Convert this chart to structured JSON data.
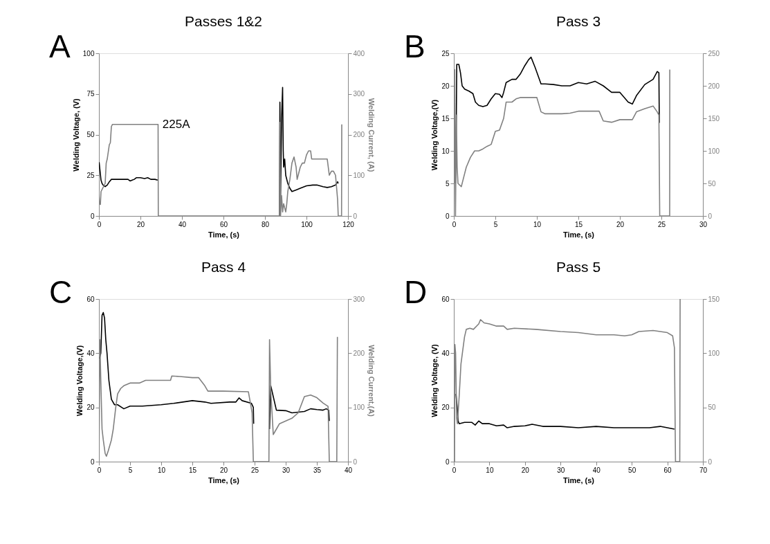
{
  "chart_data": [
    {
      "type": "line",
      "title": "Passes 1&2",
      "xlabel": "Time, (s)",
      "ylabel": "Welding Voltage, (V)",
      "y2label": "Welding Current, (A)",
      "xlim": [
        0,
        120
      ],
      "xticks": [
        0,
        20,
        40,
        60,
        80,
        100,
        120
      ],
      "ylim": [
        0,
        100
      ],
      "yticks": [
        0,
        25,
        50,
        75,
        100
      ],
      "y2lim": [
        0,
        400
      ],
      "y2ticks": [
        0,
        100,
        200,
        300,
        400
      ],
      "annotations": [
        "A",
        "225A"
      ],
      "series": [
        {
          "color": "#000000",
          "x": [
            0.1,
            0.5,
            1,
            1.5,
            2,
            3,
            4,
            5,
            6,
            8,
            10,
            12,
            14,
            15,
            16,
            17,
            18,
            20,
            22,
            23.5,
            25,
            27,
            28.3,
            50,
            87,
            87.2,
            87.5,
            88,
            88.5,
            88.8,
            89,
            89.5,
            90,
            91,
            92,
            93,
            95,
            97,
            100,
            103,
            105,
            108,
            110,
            112,
            114,
            115,
            115.3
          ],
          "values": [
            33,
            28,
            22,
            20,
            19,
            18,
            19,
            21,
            22.5,
            22.5,
            22.5,
            22.5,
            22.5,
            21.5,
            22,
            22.5,
            23.5,
            23.5,
            23,
            23.5,
            22.5,
            22.5,
            22,
            null,
            0,
            70,
            10,
            60,
            79,
            40,
            30,
            35,
            25,
            20,
            17,
            15,
            16,
            17,
            18.5,
            19,
            19,
            18,
            17.5,
            18,
            19,
            21,
            20
          ]
        },
        {
          "color": "#808080",
          "axis": "y2",
          "x": [
            0,
            0.3,
            0.7,
            1,
            2,
            3,
            3.5,
            4,
            5,
            5.5,
            6,
            6.5,
            28.5,
            28.6,
            87,
            87.2,
            87.5,
            88,
            88.5,
            89,
            90,
            90.5,
            91,
            92,
            93,
            94,
            95,
            95.5,
            96,
            97,
            98,
            99,
            100,
            101,
            102,
            102.5,
            110,
            111,
            112,
            113,
            114,
            115,
            115.3,
            116.5,
            116.9,
            117
          ],
          "values": [
            55,
            30,
            28,
            60,
            70,
            80,
            130,
            140,
            175,
            180,
            220,
            225,
            225,
            0,
            0,
            230,
            0,
            50,
            10,
            30,
            10,
            30,
            60,
            90,
            130,
            145,
            120,
            90,
            100,
            120,
            130,
            130,
            150,
            160,
            160,
            140,
            140,
            100,
            110,
            110,
            100,
            40,
            0,
            0,
            0,
            225
          ]
        }
      ]
    },
    {
      "type": "line",
      "title": "Pass 3",
      "xlabel": "Time, (s)",
      "ylabel": "Welding Voltage,(V)",
      "xlim": [
        0,
        30
      ],
      "xticks": [
        0,
        5,
        10,
        15,
        20,
        25,
        30
      ],
      "ylim": [
        0,
        25
      ],
      "yticks": [
        0,
        5,
        10,
        15,
        20,
        25
      ],
      "y2lim": [
        0,
        250
      ],
      "y2ticks": [
        0,
        50,
        100,
        150,
        200,
        250
      ],
      "annotations": [
        "B"
      ],
      "series": [
        {
          "color": "#000000",
          "x": [
            0.2,
            0.3,
            0.35,
            0.6,
            0.8,
            1,
            1.3,
            1.8,
            2.3,
            2.6,
            3,
            3.5,
            4,
            4.5,
            5,
            5.5,
            5.8,
            6,
            6.3,
            7,
            7.5,
            8,
            8.5,
            9,
            9.3,
            9.8,
            10.3,
            10.5,
            11,
            12,
            13,
            14,
            15,
            16,
            17,
            18,
            19,
            20,
            21,
            21.5,
            22,
            23,
            24,
            24.5,
            24.7,
            24.75
          ],
          "values": [
            5,
            15,
            23.3,
            23.3,
            22,
            20,
            19.5,
            19.2,
            18.8,
            17.5,
            17,
            16.8,
            17,
            18,
            18.8,
            18.7,
            18.2,
            19,
            20.5,
            21,
            21,
            21.8,
            23,
            24,
            24.4,
            22.8,
            21,
            20.3,
            20.3,
            20.2,
            20,
            20,
            20.5,
            20.3,
            20.7,
            20,
            19,
            19,
            17.5,
            17.2,
            18.5,
            20.2,
            21,
            22.2,
            22,
            14.3
          ]
        },
        {
          "color": "#808080",
          "axis": "y2",
          "x": [
            0,
            0.1,
            0.2,
            0.3,
            0.4,
            0.5,
            0.9,
            1.2,
            1.5,
            2,
            2.5,
            3,
            3.5,
            4,
            4.5,
            5,
            5.5,
            6,
            6.3,
            7,
            7.5,
            8,
            10,
            10.5,
            11,
            13,
            14,
            15,
            17.5,
            18,
            19,
            20,
            21.5,
            22,
            23,
            24,
            24.5,
            24.7,
            24.8,
            26,
            26.01
          ],
          "values": [
            0,
            225,
            0,
            155,
            75,
            50,
            45,
            60,
            75,
            90,
            100,
            100,
            103,
            107,
            110,
            130,
            132,
            150,
            175,
            175,
            180,
            182,
            182,
            160,
            157,
            157,
            158,
            161,
            161,
            146,
            144,
            148,
            148,
            160,
            165,
            169,
            160,
            155,
            0,
            0,
            225
          ]
        }
      ]
    },
    {
      "type": "line",
      "title": "Pass 4",
      "xlabel": "Time, (s)",
      "ylabel": "Welding Voltage,(V)",
      "y2label": "Welding Current,(A)",
      "xlim": [
        0,
        40
      ],
      "xticks": [
        0,
        5,
        10,
        15,
        20,
        25,
        30,
        35,
        40
      ],
      "ylim": [
        0,
        60
      ],
      "yticks": [
        0,
        20,
        40,
        60
      ],
      "y2lim": [
        0,
        300
      ],
      "y2ticks": [
        0,
        100,
        200,
        300
      ],
      "annotations": [
        "C"
      ],
      "series": [
        {
          "color": "#000000",
          "x": [
            0.1,
            0.3,
            0.5,
            0.7,
            0.9,
            1.1,
            1.3,
            1.6,
            2,
            2.5,
            3,
            4,
            5,
            7,
            10,
            12,
            15,
            17,
            18,
            21,
            22,
            22.5,
            23,
            24.5,
            24.8,
            24.85,
            26,
            27.4,
            27.6,
            28,
            28.5,
            30,
            31,
            33,
            34,
            35,
            36,
            36.5,
            36.9,
            37
          ],
          "values": [
            38,
            40,
            54,
            55,
            53,
            45,
            40,
            30,
            23,
            21,
            21,
            19.5,
            20.5,
            20.5,
            21,
            21.5,
            22.5,
            22,
            21.5,
            22,
            22,
            23.5,
            22.5,
            21.5,
            20,
            14,
            null,
            12,
            28,
            24,
            19,
            18.8,
            18,
            18.5,
            19.5,
            19.2,
            19,
            19.5,
            19,
            15
          ]
        },
        {
          "color": "#808080",
          "axis": "y2",
          "x": [
            0,
            0.15,
            0.3,
            0.5,
            0.7,
            1,
            1.2,
            1.5,
            2,
            2.3,
            2.7,
            3,
            3.5,
            4,
            5,
            6.5,
            7.5,
            11.5,
            11.7,
            13,
            15,
            16,
            17,
            17.5,
            20,
            24,
            24.3,
            24.6,
            24.8,
            27.3,
            27.4,
            27.6,
            28,
            28.5,
            29,
            30,
            31,
            32,
            33,
            34,
            35,
            36,
            36.8,
            37,
            38.2,
            38.3
          ],
          "values": [
            0,
            225,
            150,
            60,
            40,
            15,
            10,
            20,
            40,
            60,
            100,
            125,
            135,
            140,
            145,
            145,
            150,
            150,
            158,
            157,
            155,
            155,
            140,
            130,
            130,
            129,
            110,
            90,
            0,
            0,
            225,
            130,
            50,
            60,
            70,
            75,
            80,
            90,
            120,
            123,
            118,
            108,
            102,
            0,
            0,
            230
          ]
        }
      ]
    },
    {
      "type": "line",
      "title": "Pass 5",
      "xlabel": "Time, (s)",
      "ylabel": "Welding Voltage, (V)",
      "xlim": [
        0,
        70
      ],
      "xticks": [
        0,
        10,
        20,
        30,
        40,
        50,
        60,
        70
      ],
      "ylim": [
        0,
        60
      ],
      "yticks": [
        0,
        20,
        40,
        60
      ],
      "y2lim": [
        0,
        150
      ],
      "y2ticks": [
        0,
        50,
        100,
        150
      ],
      "annotations": [
        "D"
      ],
      "series": [
        {
          "color": "#000000",
          "x": [
            0.6,
            1,
            1.2,
            1.5,
            3,
            5,
            6,
            7,
            8,
            10,
            12,
            14,
            15,
            17,
            20,
            22,
            25,
            30,
            35,
            40,
            45,
            50,
            55,
            58,
            60,
            62
          ],
          "values": [
            25,
            19,
            15,
            14,
            14.5,
            14.5,
            13.5,
            15,
            14,
            14,
            13.2,
            13.5,
            12.5,
            13,
            13.2,
            13.8,
            13,
            13,
            12.5,
            13,
            12.5,
            12.5,
            12.5,
            13,
            12.5,
            12
          ]
        },
        {
          "color": "#808080",
          "axis": "y2",
          "x": [
            0.2,
            0.3,
            0.5,
            0.8,
            1,
            1.5,
            2,
            3,
            3.5,
            4.5,
            5.5,
            7,
            7.5,
            8.5,
            10,
            12,
            14,
            15,
            17,
            23,
            30,
            35,
            40,
            45,
            48,
            50,
            52,
            56,
            60,
            61.5,
            62,
            62.3,
            63.5,
            63.6
          ],
          "values": [
            0,
            108,
            100,
            40,
            35,
            60,
            90,
            115,
            122,
            123,
            122,
            127,
            131,
            128,
            127,
            125,
            125,
            122,
            123,
            122,
            120,
            119,
            117,
            117,
            116,
            117,
            120,
            121,
            119,
            116,
            105,
            0,
            0,
            150
          ]
        }
      ]
    }
  ]
}
